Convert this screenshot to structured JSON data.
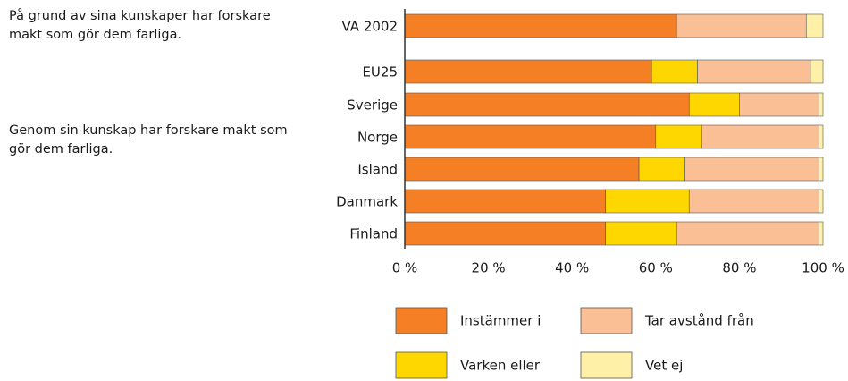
{
  "chart_data": {
    "type": "stacked-bar-horizontal",
    "annotations": [
      "På grund av sina kunskaper har forskare makt som gör dem farliga.",
      "Genom sin kunskap har forskare makt som gör dem farliga."
    ],
    "categories": [
      "VA 2002",
      "EU25",
      "Sverige",
      "Norge",
      "Island",
      "Danmark",
      "Finland"
    ],
    "series": [
      {
        "name": "Instämmer i",
        "color": "#f47f24",
        "values": [
          65,
          59,
          68,
          60,
          56,
          48,
          48
        ]
      },
      {
        "name": "Varken eller",
        "color": "#ffd700",
        "values": [
          0,
          11,
          12,
          11,
          11,
          20,
          17
        ]
      },
      {
        "name": "Tar avstånd från",
        "color": "#fbbf96",
        "values": [
          31,
          27,
          19,
          28,
          32,
          31,
          34
        ]
      },
      {
        "name": "Vet ej",
        "color": "#fff0a8",
        "values": [
          4,
          3,
          1,
          1,
          1,
          1,
          1
        ]
      }
    ],
    "xlim": [
      0,
      100
    ],
    "xticks": [
      {
        "value": 0,
        "label": "0 %"
      },
      {
        "value": 20,
        "label": "20 %"
      },
      {
        "value": 40,
        "label": "40 %"
      },
      {
        "value": 60,
        "label": "60 %"
      },
      {
        "value": 80,
        "label": "80 %"
      },
      {
        "value": 100,
        "label": "100 %"
      }
    ]
  }
}
